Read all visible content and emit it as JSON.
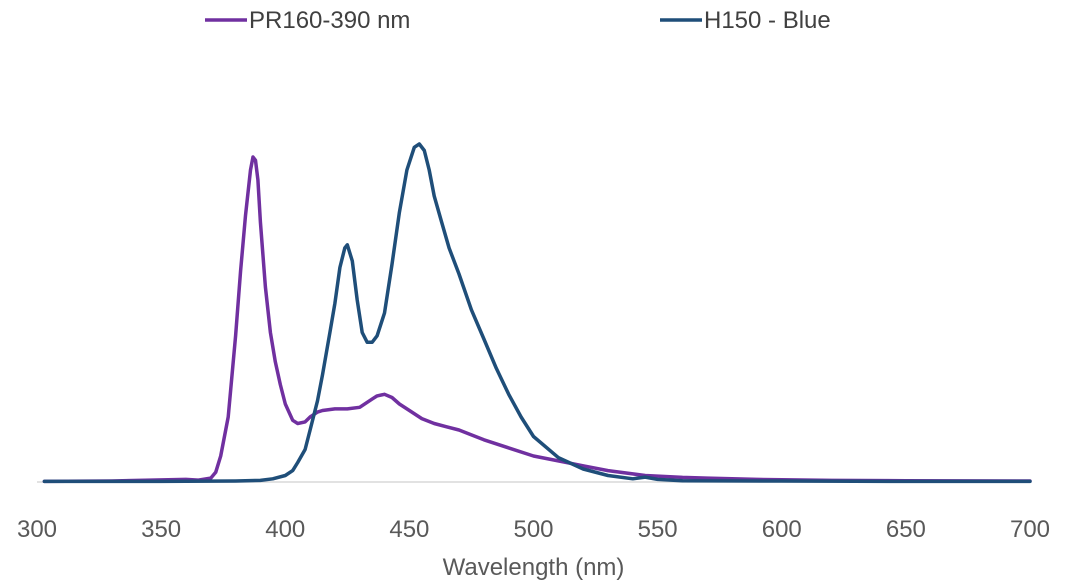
{
  "chart_data": {
    "type": "line",
    "title": "",
    "xlabel": "Wavelength (nm)",
    "ylabel": "",
    "xlim": [
      300,
      700
    ],
    "ylim": [
      0,
      1
    ],
    "x_ticks": [
      "300",
      "350",
      "400",
      "450",
      "500",
      "550",
      "600",
      "650",
      "700"
    ],
    "grid": false,
    "legend": {
      "position": "top"
    },
    "series": [
      {
        "name": "PR160-390 nm",
        "color": "#7030A0",
        "x": [
          303,
          330,
          360,
          365,
          370,
          372,
          374,
          377,
          380,
          382,
          384,
          386,
          387,
          388,
          389,
          390,
          392,
          394,
          396,
          398,
          400,
          403,
          405,
          408,
          410,
          413,
          415,
          420,
          425,
          430,
          435,
          437,
          440,
          443,
          446,
          450,
          455,
          460,
          465,
          470,
          475,
          480,
          490,
          500,
          510,
          520,
          530,
          540,
          545,
          550,
          560,
          570,
          580,
          590,
          600,
          620,
          650,
          700
        ],
        "y": [
          0.002,
          0.003,
          0.008,
          0.006,
          0.012,
          0.03,
          0.08,
          0.2,
          0.45,
          0.65,
          0.82,
          0.96,
          1.0,
          0.99,
          0.93,
          0.8,
          0.6,
          0.46,
          0.37,
          0.3,
          0.24,
          0.19,
          0.18,
          0.185,
          0.2,
          0.215,
          0.22,
          0.225,
          0.225,
          0.23,
          0.255,
          0.265,
          0.27,
          0.26,
          0.24,
          0.22,
          0.195,
          0.18,
          0.17,
          0.16,
          0.145,
          0.13,
          0.105,
          0.08,
          0.065,
          0.05,
          0.035,
          0.025,
          0.02,
          0.018,
          0.014,
          0.012,
          0.01,
          0.008,
          0.007,
          0.005,
          0.004,
          0.003
        ]
      },
      {
        "name": "H150 - Blue",
        "color": "#1F4E79",
        "x": [
          303,
          350,
          380,
          390,
          395,
          400,
          403,
          405,
          408,
          410,
          413,
          415,
          418,
          420,
          422,
          424,
          425,
          427,
          429,
          431,
          433,
          435,
          437,
          440,
          443,
          446,
          449,
          452,
          454,
          456,
          458,
          460,
          463,
          466,
          470,
          475,
          480,
          485,
          490,
          495,
          500,
          510,
          520,
          530,
          540,
          545,
          550,
          560,
          600,
          650,
          700
        ],
        "y": [
          0.002,
          0.002,
          0.003,
          0.005,
          0.01,
          0.02,
          0.035,
          0.06,
          0.1,
          0.16,
          0.25,
          0.33,
          0.46,
          0.55,
          0.66,
          0.72,
          0.73,
          0.68,
          0.56,
          0.46,
          0.43,
          0.43,
          0.45,
          0.52,
          0.67,
          0.83,
          0.96,
          1.03,
          1.04,
          1.02,
          0.96,
          0.88,
          0.8,
          0.72,
          0.64,
          0.53,
          0.44,
          0.35,
          0.27,
          0.2,
          0.14,
          0.075,
          0.04,
          0.02,
          0.01,
          0.015,
          0.008,
          0.004,
          0.003,
          0.002,
          0.002
        ]
      }
    ]
  }
}
